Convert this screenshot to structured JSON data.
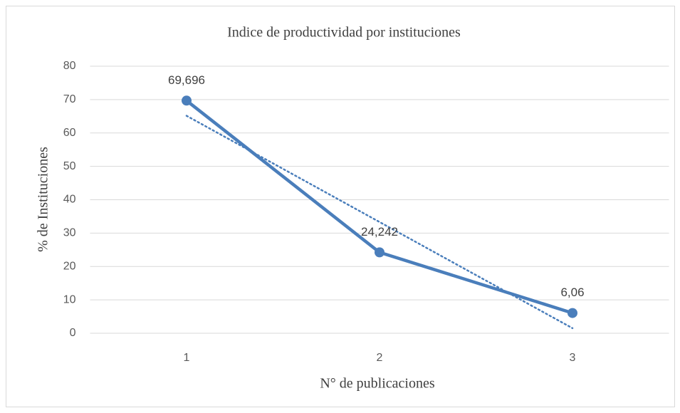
{
  "chart_data": {
    "type": "line",
    "title": "Indice de productividad por instituciones",
    "x_label": "N° de publicaciones",
    "y_label": "% de Instituciones",
    "categories": [
      "1",
      "2",
      "3"
    ],
    "series": [
      {
        "color": "#4a7ebb",
        "values": [
          69.696,
          24.242,
          6.06
        ],
        "value_labels": [
          "69,696",
          "24,242",
          "6,06"
        ]
      }
    ],
    "trendline": {
      "kind": "linear",
      "style": "dotted",
      "color": "#4a7ebb"
    },
    "ylim": [
      0,
      80
    ],
    "yticks": [
      0,
      10,
      20,
      30,
      40,
      50,
      60,
      70,
      80
    ],
    "grid": true
  }
}
